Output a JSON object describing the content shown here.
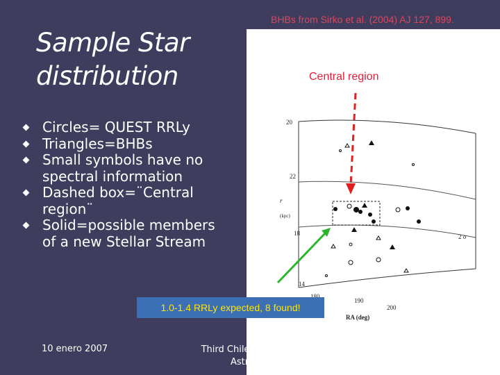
{
  "slide": {
    "title": [
      "Sample Star",
      "distribution"
    ],
    "source": "BHBs from Sirko et al. (2004) AJ 127, 899.",
    "bullets": [
      [
        "Circles= QUEST RRLy"
      ],
      [
        "Triangles=BHBs"
      ],
      [
        "Small symbols have no",
        "spectral information"
      ],
      [
        "Dashed box=¨Central",
        "region¨"
      ],
      [
        "Solid=possible members",
        "of a new Stellar Stream"
      ]
    ],
    "figure": {
      "callout": "Central region",
      "radial_labels": [
        "20",
        "22",
        "18",
        "14"
      ],
      "radial_axis": [
        "r",
        "(kpc)"
      ],
      "ra_labels": [
        "180",
        "190",
        "200"
      ],
      "ra_axis": "RA (deg)",
      "scale": "2 σ"
    },
    "note": "1.0-1.4 RRLy expected, 8 found!",
    "footer": {
      "date": "10 enero 2007",
      "event": [
        "Third Chilean A",
        "Astrophysics"
      ]
    }
  }
}
